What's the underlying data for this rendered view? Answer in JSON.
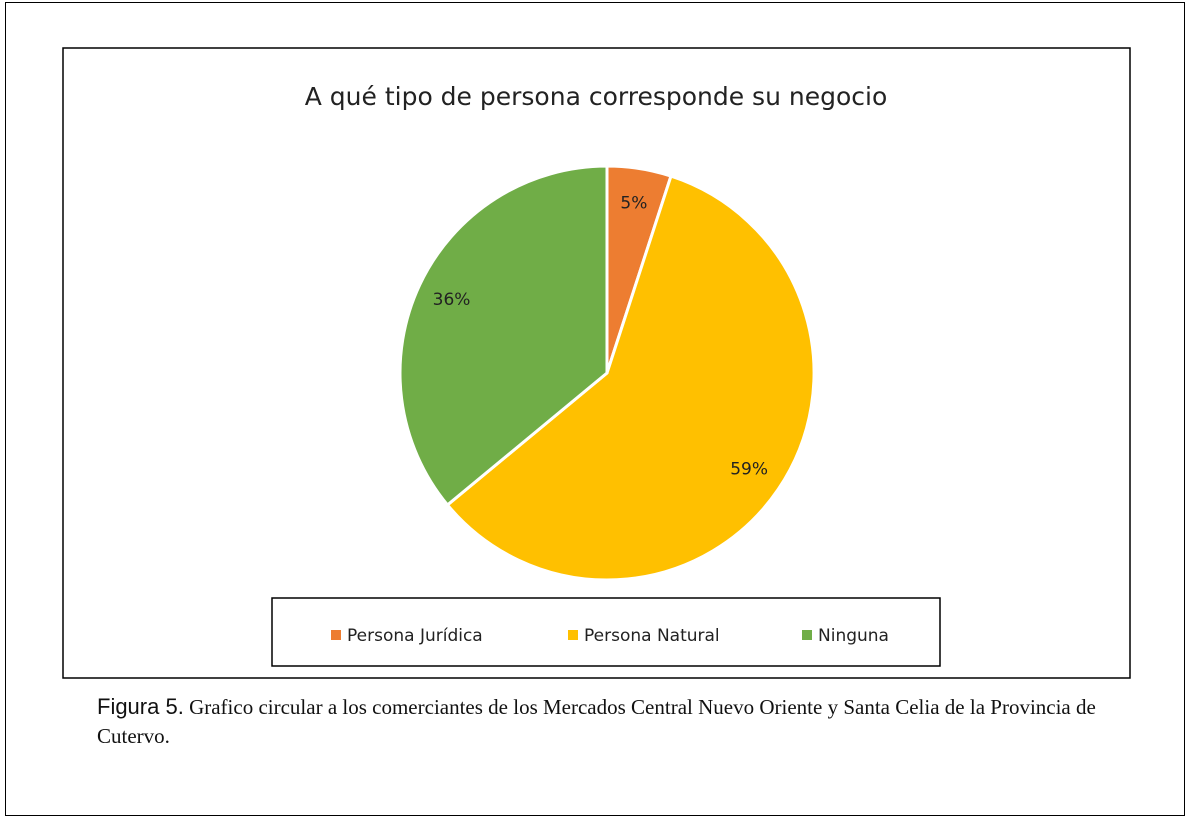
{
  "chart_data": {
    "type": "pie",
    "title": "A  qué tipo de persona corresponde su negocio",
    "categories": [
      "Persona Jurídica",
      "Persona Natural",
      "Ninguna"
    ],
    "values": [
      5,
      59,
      36
    ],
    "value_labels": [
      "5%",
      "59%",
      "36%"
    ],
    "colors": [
      "#ed7d31",
      "#ffc000",
      "#70ad47"
    ],
    "legend": "bottom"
  },
  "caption": {
    "label": "Figura 5.",
    "text": "Grafico circular a los comerciantes de los Mercados Central Nuevo Oriente y Santa Celia de la Provincia de Cutervo."
  }
}
